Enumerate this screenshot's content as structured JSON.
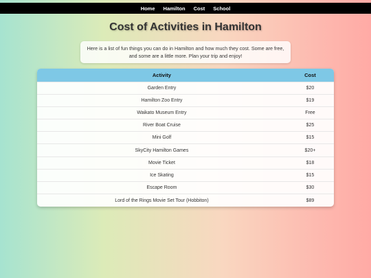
{
  "nav": {
    "items": [
      {
        "label": "Home"
      },
      {
        "label": "Hamilton"
      },
      {
        "label": "Cost"
      },
      {
        "label": "School"
      }
    ]
  },
  "page": {
    "title": "Cost of Activities in Hamilton",
    "intro": "Here is a list of fun things you can do in Hamilton and how much they cost. Some are free, and some are a little more. Plan your trip and enjoy!"
  },
  "table": {
    "headers": {
      "activity": "Activity",
      "cost": "Cost"
    },
    "rows": [
      {
        "activity": "Garden Entry",
        "cost": "$20"
      },
      {
        "activity": "Hamilton Zoo Entry",
        "cost": "$19"
      },
      {
        "activity": "Waikato Museum Entry",
        "cost": "Free"
      },
      {
        "activity": "River Boat Cruise",
        "cost": "$25"
      },
      {
        "activity": "Mini Golf",
        "cost": "$15"
      },
      {
        "activity": "SkyCity Hamilton Games",
        "cost": "$20+"
      },
      {
        "activity": "Movie Ticket",
        "cost": "$18"
      },
      {
        "activity": "Ice Skating",
        "cost": "$15"
      },
      {
        "activity": "Escape Room",
        "cost": "$30"
      },
      {
        "activity": "Lord of the Rings Movie Set Tour (Hobbiton)",
        "cost": "$89"
      }
    ]
  },
  "colors": {
    "navbar": "#000000",
    "table_header": "#7ec8e6",
    "gradient_left": "#a6e3d0",
    "gradient_right": "#ffaaa5"
  }
}
